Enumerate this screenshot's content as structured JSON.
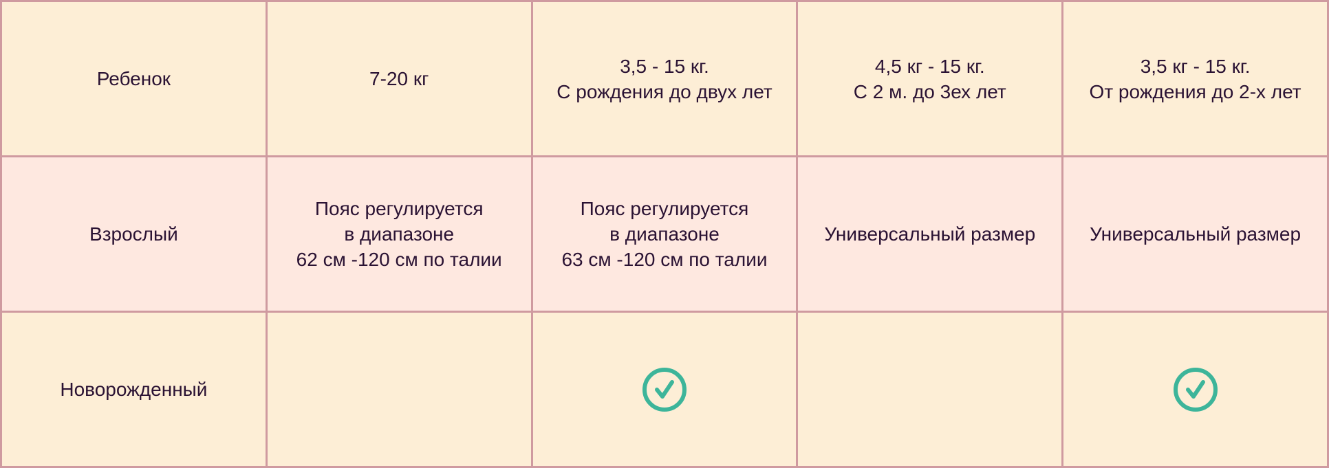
{
  "colors": {
    "row_yellow": "#fdeed6",
    "row_pink": "#fee8e0",
    "border": "#cf9aa0",
    "check": "#3db59a"
  },
  "rows": [
    {
      "label": "Ребенок",
      "cells": [
        [
          "7-20 кг"
        ],
        [
          "3,5 - 15 кг.",
          "С рождения до двух лет"
        ],
        [
          "4,5 кг - 15 кг.",
          "С 2 м. до 3ех лет"
        ],
        [
          "3,5 кг - 15 кг.",
          "От рождения до 2-х лет"
        ]
      ]
    },
    {
      "label": "Взрослый",
      "cells": [
        [
          "Пояс регулируется",
          "в диапазоне",
          "62 см -120 см по талии"
        ],
        [
          "Пояс регулируется",
          "в диапазоне",
          "63 см -120 см по талии"
        ],
        [
          "Универсальный размер"
        ],
        [
          "Универсальный размер"
        ]
      ]
    },
    {
      "label": "Новорожденный",
      "checks": [
        false,
        true,
        false,
        true
      ],
      "icon": "check-circle-icon"
    }
  ]
}
